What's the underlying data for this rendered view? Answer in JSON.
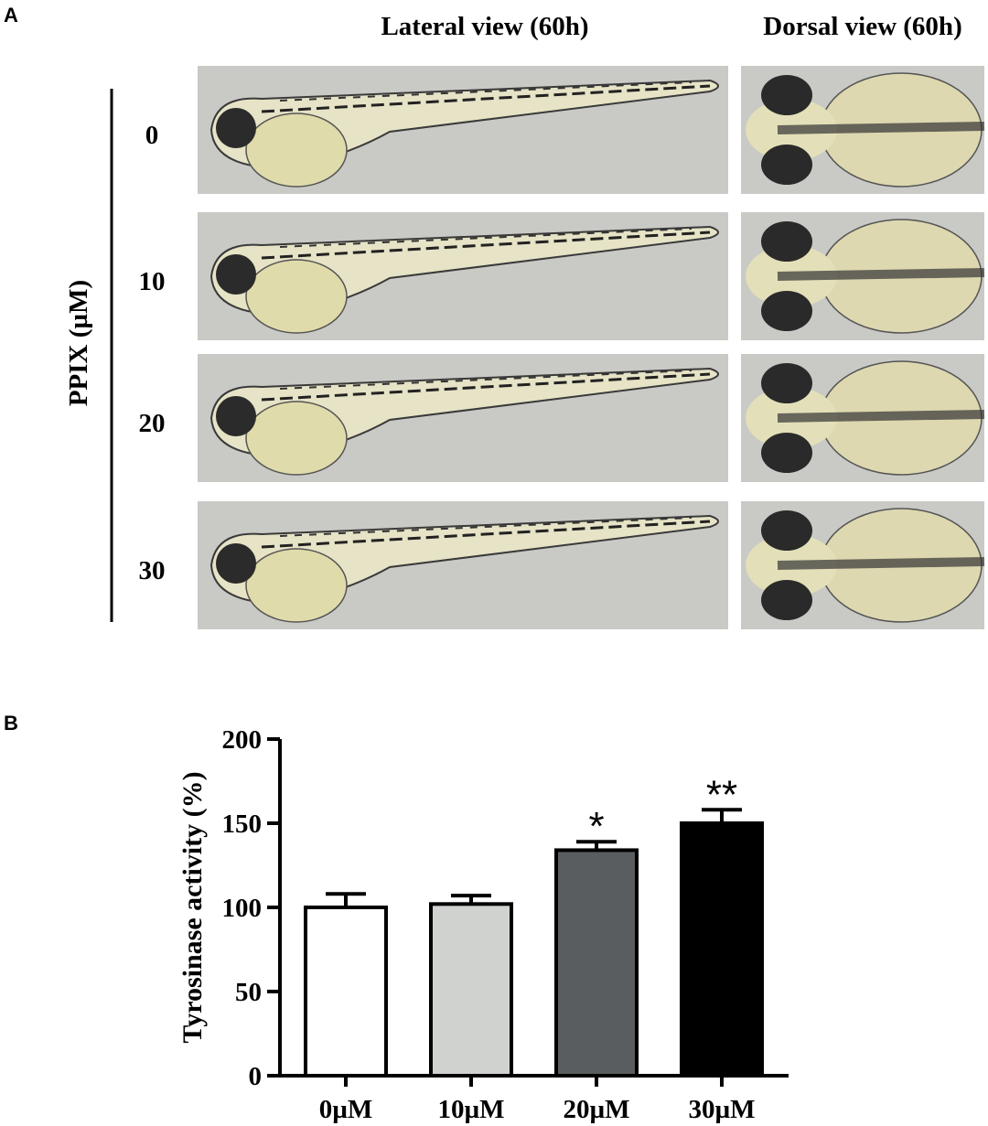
{
  "panel_a": {
    "label": "A",
    "column_titles": [
      "Lateral view (60h)",
      "Dorsal view (60h)"
    ],
    "row_axis_label": "PPIX (µM)",
    "row_labels": [
      "0",
      "10",
      "20",
      "30"
    ]
  },
  "chart_data": {
    "type": "bar",
    "panel_label": "B",
    "ylabel": "Tyrosinase activity (%)",
    "categories": [
      "0µM",
      "10µM",
      "20µM",
      "30µM"
    ],
    "values": [
      100,
      102,
      134,
      150
    ],
    "errors": [
      8,
      5,
      5,
      8
    ],
    "colors": [
      "#ffffff",
      "#d0d2d0",
      "#5a5d5f",
      "#000000"
    ],
    "significance": [
      null,
      null,
      "*",
      "**"
    ],
    "ylim": [
      0,
      200
    ],
    "yticks": [
      0,
      50,
      100,
      150,
      200
    ]
  }
}
